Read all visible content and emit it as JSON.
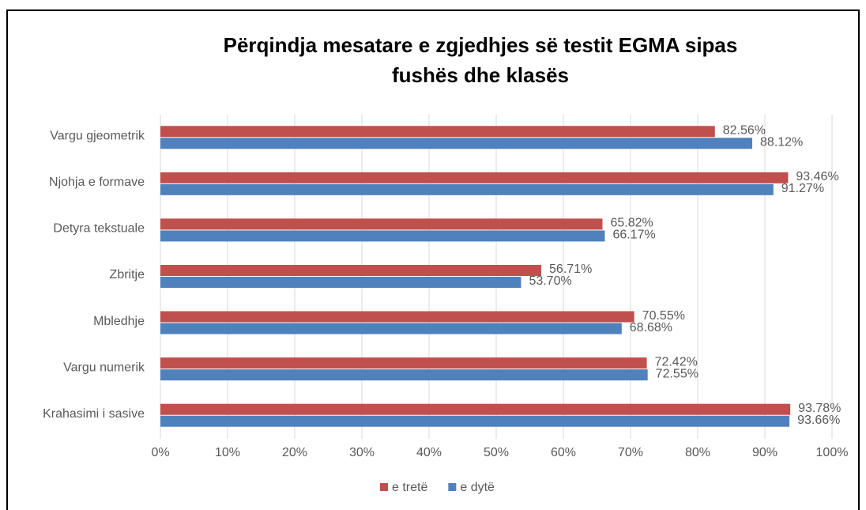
{
  "chart_data": {
    "type": "bar",
    "orientation": "horizontal",
    "title": "Përqindja mesatare e zgjedhjes së testit EGMA sipas fushës dhe klasës",
    "categories": [
      "Vargu gjeometrik",
      "Njohja e formave",
      "Detyra tekstuale",
      "Zbritje",
      "Mbledhje",
      "Vargu numerik",
      "Krahasimi i sasive"
    ],
    "series": [
      {
        "name": "e tretë",
        "color": "#c0504d",
        "values": [
          82.56,
          93.46,
          65.82,
          56.71,
          70.55,
          72.42,
          93.78
        ],
        "value_labels": [
          "82.56%",
          "93.46%",
          "65.82%",
          "56.71%",
          "70.55%",
          "72.42%",
          "93.78%"
        ]
      },
      {
        "name": "e dytë",
        "color": "#4f81bd",
        "values": [
          88.12,
          91.27,
          66.17,
          53.7,
          68.68,
          72.55,
          93.66
        ],
        "value_labels": [
          "88.12%",
          "91.27%",
          "66.17%",
          "53.70%",
          "68.68%",
          "72.55%",
          "93.66%"
        ]
      }
    ],
    "xlim": [
      0,
      100
    ],
    "xticks": [
      {
        "value": 0,
        "label": "0%"
      },
      {
        "value": 10,
        "label": "10%"
      },
      {
        "value": 20,
        "label": "20%"
      },
      {
        "value": 30,
        "label": "30%"
      },
      {
        "value": 40,
        "label": "40%"
      },
      {
        "value": 50,
        "label": "50%"
      },
      {
        "value": 60,
        "label": "60%"
      },
      {
        "value": 70,
        "label": "70%"
      },
      {
        "value": 80,
        "label": "80%"
      },
      {
        "value": 90,
        "label": "90%"
      },
      {
        "value": 100,
        "label": "100%"
      }
    ],
    "grid": true,
    "legend": "bottom"
  }
}
